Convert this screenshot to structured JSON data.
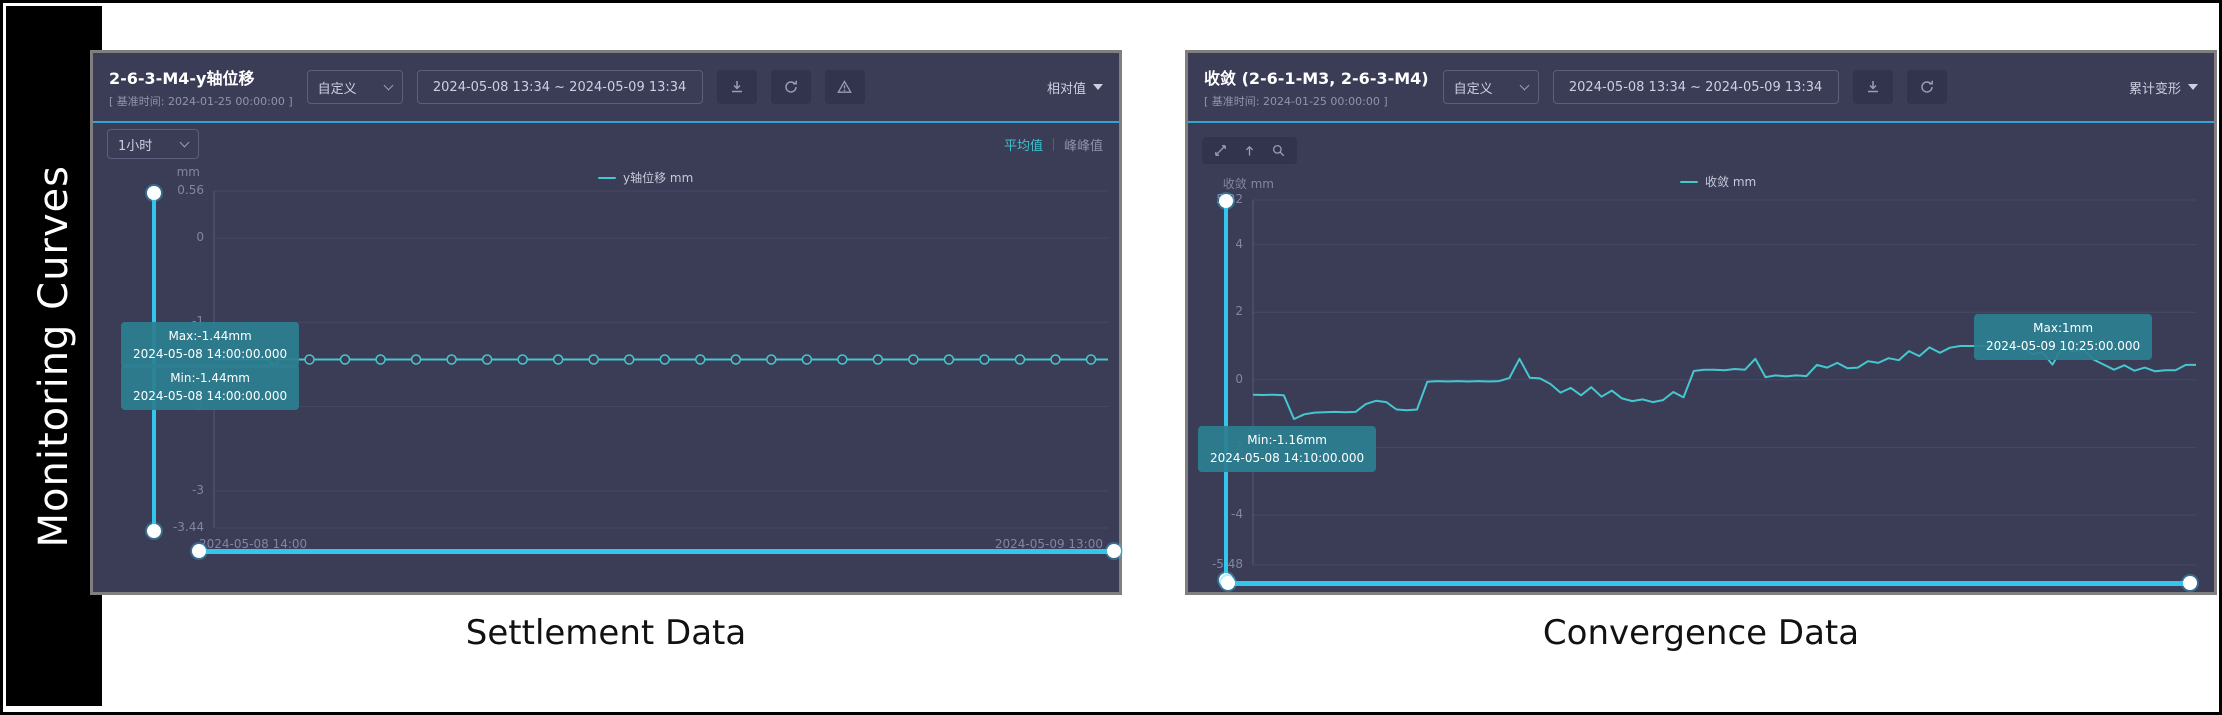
{
  "figure": {
    "side_label": "Monitoring Curves",
    "caption_left": "Settlement Data",
    "caption_right": "Convergence Data"
  },
  "colors": {
    "accent_line": "#45c8cd",
    "slider": "#33c5ea",
    "tooltip_bg": "#2d7f91",
    "separator": "#35a4d0",
    "panel_bg": "#3b3c56"
  },
  "left_panel": {
    "title": "2-6-3-M4-y轴位移",
    "subtitle": "[ 基准时间: 2024-01-25 00:00:00 ]",
    "range_type": "自定义",
    "date_range": "2024-05-08 13:34  ~  2024-05-09 13:34",
    "value_mode": "相对值",
    "interval": "1小时",
    "toggle_avg": "平均值",
    "toggle_peak": "峰峰值",
    "legend": "y轴位移 mm",
    "unit": "mm",
    "x_start": "2024-05-08 14:00",
    "x_end": "2024-05-09 13:00",
    "tooltip_max": {
      "line1": "Max:-1.44mm",
      "line2": "2024-05-08 14:00:00.000"
    },
    "tooltip_min": {
      "line1": "Min:-1.44mm",
      "line2": "2024-05-08 14:00:00.000"
    }
  },
  "right_panel": {
    "title": "收敛 (2-6-1-M3, 2-6-3-M4)",
    "subtitle": "[ 基准时间: 2024-01-25 00:00:00 ]",
    "range_type": "自定义",
    "date_range": "2024-05-08 13:34  ~  2024-05-09 13:34",
    "value_mode": "累计变形",
    "legend": "收敛 mm",
    "unit": "收敛 mm",
    "tooltip_max": {
      "line1": "Max:1mm",
      "line2": "2024-05-09 10:25:00.000"
    },
    "tooltip_min": {
      "line1": "Min:-1.16mm",
      "line2": "2024-05-08 14:10:00.000"
    }
  },
  "chart_data": [
    {
      "type": "line",
      "title": "2-6-3-M4-y轴位移",
      "ylabel": "mm",
      "ylim": [
        -3.44,
        0.56
      ],
      "x_range": [
        "2024-05-08 14:00",
        "2024-05-09 13:00"
      ],
      "grid": true,
      "legend_position": "top-center",
      "color": "#45c8cd",
      "y_ticks": [
        {
          "label": "0.56",
          "value": 0.56
        },
        {
          "label": "0",
          "value": 0
        },
        {
          "label": "-1",
          "value": -1
        },
        {
          "label": "-2",
          "value": -2
        },
        {
          "label": "-3",
          "value": -3
        },
        {
          "label": "-3.44",
          "value": -3.44
        }
      ],
      "series": [
        {
          "name": "y轴位移 mm",
          "constant": true,
          "markers": true,
          "max": {
            "value": -1.44,
            "time": "2024-05-08 14:00:00.000"
          },
          "min": {
            "value": -1.44,
            "time": "2024-05-08 14:00:00.000"
          },
          "values": [
            -1.44,
            -1.44,
            -1.44,
            -1.44,
            -1.44,
            -1.44,
            -1.44,
            -1.44,
            -1.44,
            -1.44,
            -1.44,
            -1.44,
            -1.44,
            -1.44,
            -1.44,
            -1.44,
            -1.44,
            -1.44,
            -1.44,
            -1.44,
            -1.44,
            -1.44,
            -1.44,
            -1.44
          ]
        }
      ]
    },
    {
      "type": "line",
      "title": "收敛 (2-6-1-M3, 2-6-3-M4)",
      "ylabel": "收敛 mm",
      "ylim": [
        -5.48,
        5.32
      ],
      "x_range": [
        "2024-05-08 13:34",
        "2024-05-09 13:34"
      ],
      "grid": true,
      "legend_position": "top-center",
      "color": "#45c8cd",
      "y_ticks": [
        {
          "label": "5.32",
          "value": 5.32
        },
        {
          "label": "4",
          "value": 4
        },
        {
          "label": "2",
          "value": 2
        },
        {
          "label": "0",
          "value": 0
        },
        {
          "label": "-2",
          "value": -2
        },
        {
          "label": "-4",
          "value": -4
        },
        {
          "label": "-5.48",
          "value": -5.48
        }
      ],
      "series": [
        {
          "name": "收敛 mm",
          "constant": false,
          "markers": false,
          "max": {
            "value": 1,
            "time": "2024-05-09 10:25:00.000"
          },
          "min": {
            "value": -1.16,
            "time": "2024-05-08 14:10:00.000"
          },
          "values": [
            -0.44,
            -0.45,
            -0.44,
            -0.46,
            -1.16,
            -1.02,
            -0.97,
            -0.96,
            -0.95,
            -0.96,
            -0.95,
            -0.72,
            -0.62,
            -0.66,
            -0.88,
            -0.9,
            -0.88,
            -0.06,
            -0.04,
            -0.05,
            -0.04,
            -0.05,
            -0.04,
            -0.05,
            -0.04,
            0.05,
            0.62,
            0.06,
            0.04,
            -0.12,
            -0.38,
            -0.24,
            -0.46,
            -0.22,
            -0.5,
            -0.32,
            -0.55,
            -0.63,
            -0.58,
            -0.66,
            -0.6,
            -0.36,
            -0.52,
            0.26,
            0.3,
            0.3,
            0.28,
            0.32,
            0.3,
            0.62,
            0.08,
            0.13,
            0.1,
            0.13,
            0.11,
            0.44,
            0.36,
            0.5,
            0.34,
            0.36,
            0.55,
            0.5,
            0.64,
            0.58,
            0.85,
            0.7,
            0.96,
            0.8,
            0.95,
            1,
            1,
            1,
            1,
            1,
            1,
            1,
            0.76,
            0.82,
            0.45,
            1.0,
            0.85,
            0.9,
            0.6,
            0.45,
            0.3,
            0.43,
            0.27,
            0.36,
            0.25,
            0.28,
            0.28,
            0.44,
            0.44
          ]
        }
      ]
    }
  ]
}
